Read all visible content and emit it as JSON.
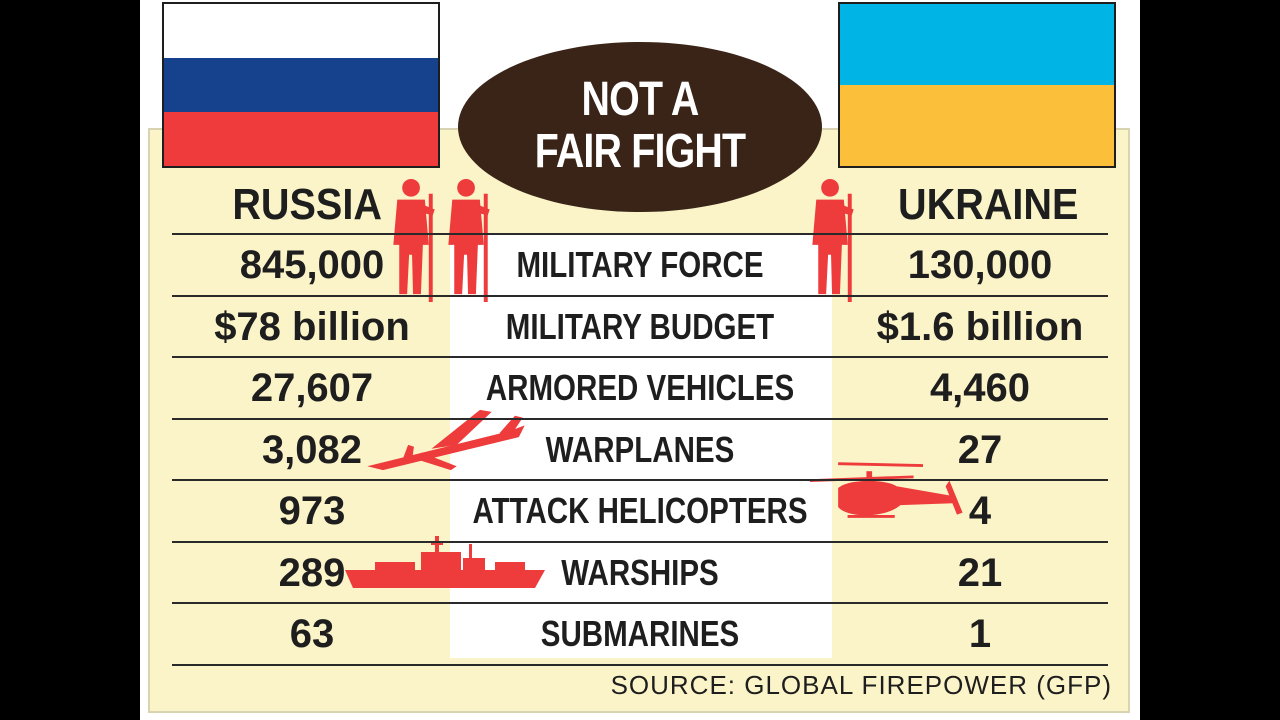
{
  "title": {
    "line1": "NOT A",
    "line2": "FAIR FIGHT"
  },
  "countries": {
    "left": "RUSSIA",
    "right": "UKRAINE"
  },
  "colors": {
    "panel_bg": "#fbf4c8",
    "ellipse": "#3a2418",
    "silhouette": "#ee3b3b",
    "russia_flag": [
      "#ffffff",
      "#16418c",
      "#ef3b3b"
    ],
    "ukraine_flag": [
      "#00b4e6",
      "#fbbf3a"
    ]
  },
  "icons": [
    "soldier-icon",
    "warplane-icon",
    "helicopter-icon",
    "warship-icon"
  ],
  "chart_data": {
    "type": "table",
    "title": "NOT A FAIR FIGHT",
    "columns": [
      "RUSSIA",
      "",
      "UKRAINE"
    ],
    "rows": [
      {
        "category": "MILITARY FORCE",
        "russia": "845,000",
        "ukraine": "130,000"
      },
      {
        "category": "MILITARY BUDGET",
        "russia": "$78 billion",
        "ukraine": "$1.6 billion"
      },
      {
        "category": "ARMORED VEHICLES",
        "russia": "27,607",
        "ukraine": "4,460"
      },
      {
        "category": "WARPLANES",
        "russia": "3,082",
        "ukraine": "27"
      },
      {
        "category": "ATTACK HELICOPTERS",
        "russia": "973",
        "ukraine": "4"
      },
      {
        "category": "WARSHIPS",
        "russia": "289",
        "ukraine": "21"
      },
      {
        "category": "SUBMARINES",
        "russia": "63",
        "ukraine": "1"
      }
    ]
  },
  "source": "SOURCE: GLOBAL FIREPOWER (GFP)"
}
